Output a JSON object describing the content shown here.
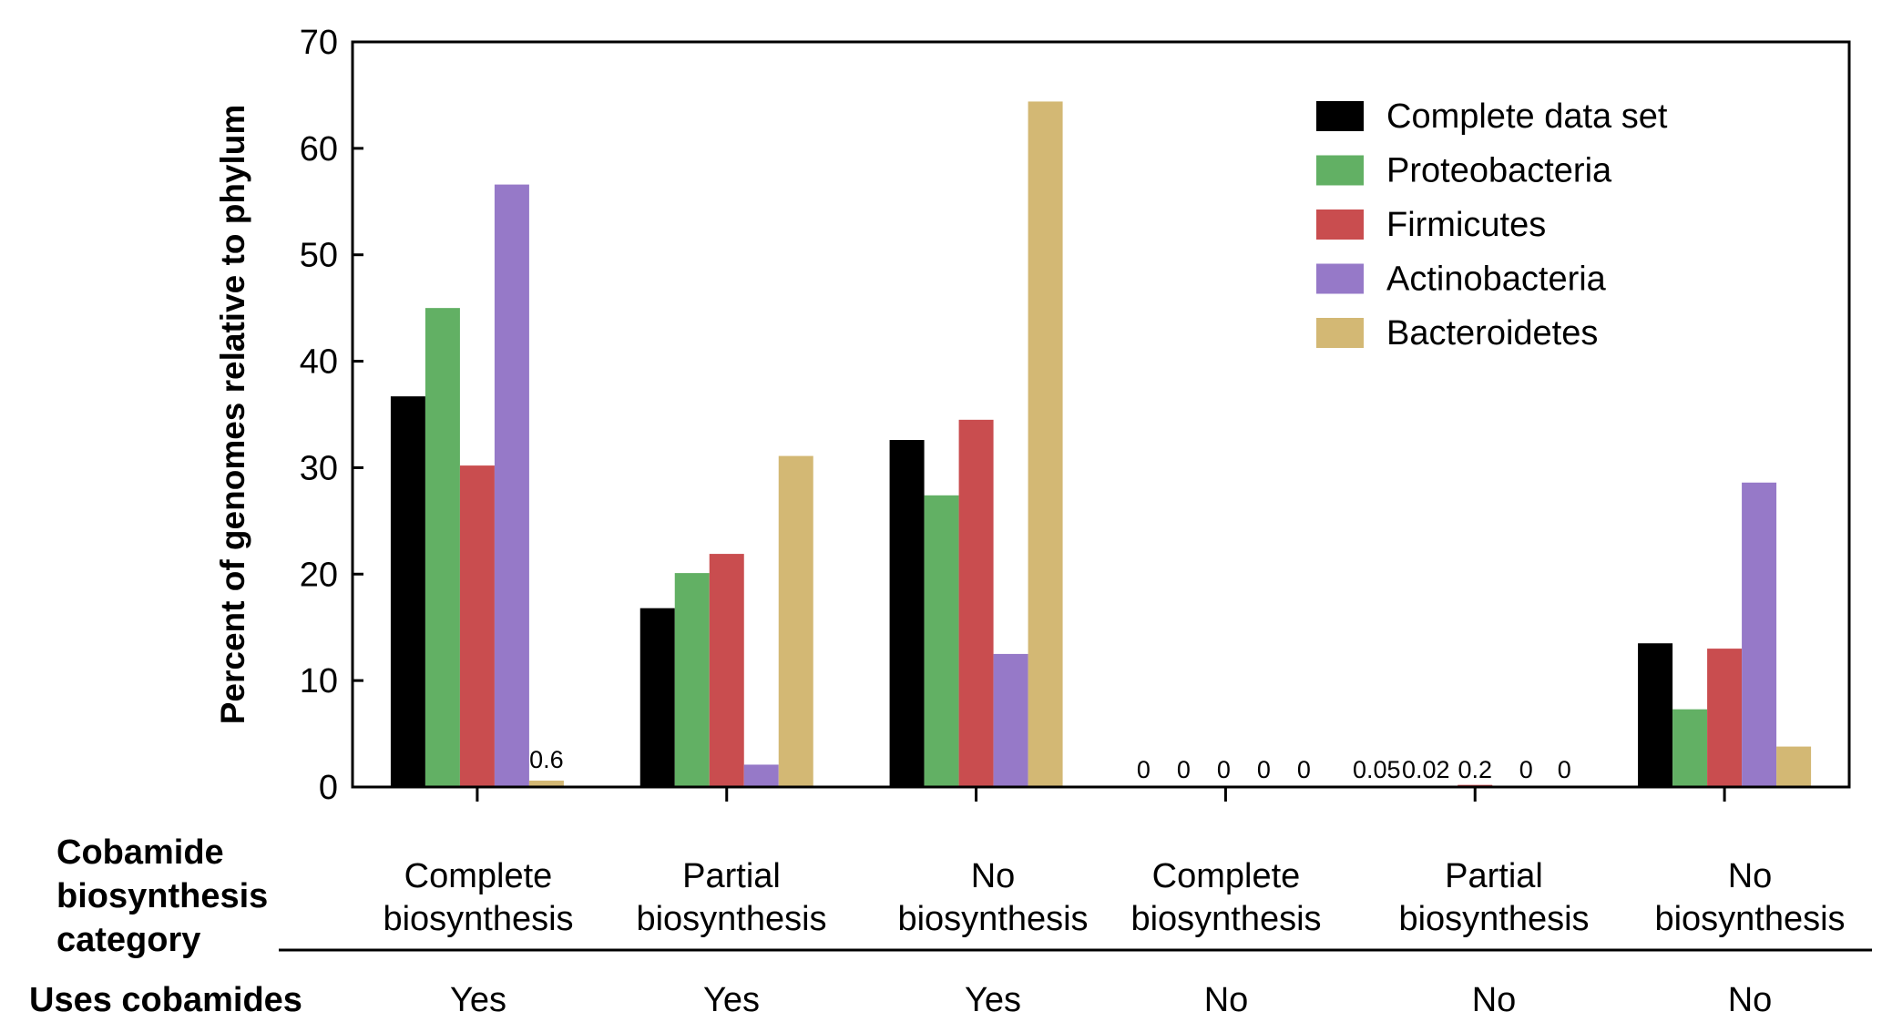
{
  "chart_data": {
    "type": "bar",
    "title": "",
    "ylabel": "Percent of genomes relative to phylum",
    "xlabel": "",
    "ylim": [
      0,
      70
    ],
    "yticks": [
      0,
      10,
      20,
      30,
      40,
      50,
      60,
      70
    ],
    "grid": false,
    "legend_position": "top-right",
    "categories": [
      [
        "Complete",
        "biosynthesis"
      ],
      [
        "Partial",
        "biosynthesis"
      ],
      [
        "No",
        "biosynthesis"
      ],
      [
        "Complete",
        "biosynthesis"
      ],
      [
        "Partial",
        "biosynthesis"
      ],
      [
        "No",
        "biosynthesis"
      ]
    ],
    "category_row_header": [
      "Cobamide",
      "biosynthesis",
      "category"
    ],
    "uses_cobamides_header": "Uses cobamides",
    "uses_cobamides": [
      "Yes",
      "Yes",
      "Yes",
      "No",
      "No",
      "No"
    ],
    "series": [
      {
        "name": "Complete data set",
        "color": "#000000",
        "values": [
          36.7,
          16.8,
          32.6,
          0,
          0.05,
          13.5
        ]
      },
      {
        "name": "Proteobacteria",
        "color": "#62b064",
        "values": [
          45.0,
          20.1,
          27.4,
          0,
          0.02,
          7.3
        ]
      },
      {
        "name": "Firmicutes",
        "color": "#c94d4f",
        "values": [
          30.2,
          21.9,
          34.5,
          0,
          0.2,
          13.0
        ]
      },
      {
        "name": "Actinobacteria",
        "color": "#9679c8",
        "values": [
          56.6,
          2.1,
          12.5,
          0,
          0,
          28.6
        ]
      },
      {
        "name": "Bacteroidetes",
        "color": "#d3b874",
        "values": [
          0.6,
          31.1,
          64.4,
          0,
          0,
          3.8
        ]
      }
    ],
    "annotations": [
      {
        "category_index": 0,
        "series_index": 4,
        "text": "0.6"
      },
      {
        "category_index": 3,
        "series_index": 0,
        "text": "0"
      },
      {
        "category_index": 3,
        "series_index": 1,
        "text": "0"
      },
      {
        "category_index": 3,
        "series_index": 2,
        "text": "0"
      },
      {
        "category_index": 3,
        "series_index": 3,
        "text": "0"
      },
      {
        "category_index": 3,
        "series_index": 4,
        "text": "0"
      },
      {
        "category_index": 4,
        "series_index": 0,
        "text": "0.05"
      },
      {
        "category_index": 4,
        "series_index": 1,
        "text": "0.02"
      },
      {
        "category_index": 4,
        "series_index": 2,
        "text": "0.2"
      },
      {
        "category_index": 4,
        "series_index": 3,
        "text": "0"
      },
      {
        "category_index": 4,
        "series_index": 4,
        "text": "0"
      }
    ]
  }
}
